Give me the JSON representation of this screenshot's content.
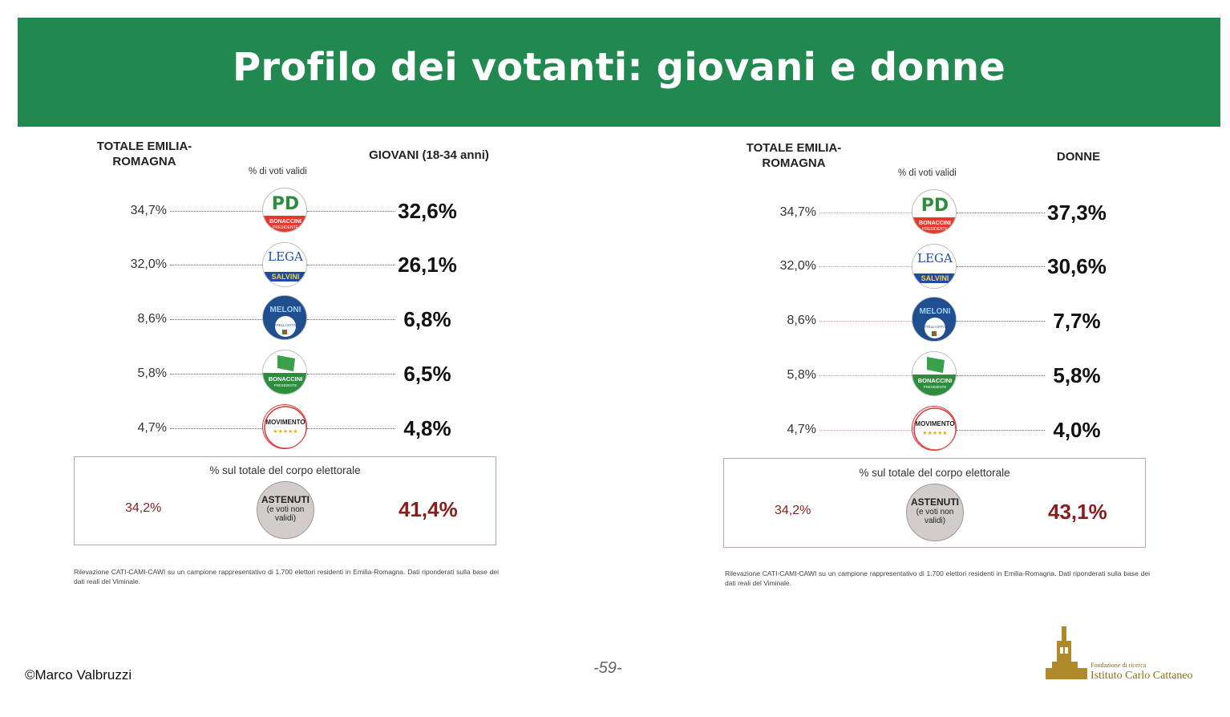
{
  "title": "Profilo dei votanti: giovani e donne",
  "panels": [
    {
      "header_total": "TOTALE EMILIA-ROMAGNA",
      "header_mid": "% di voti validi",
      "header_right": "GIOVANI (18-34 anni)",
      "rows": [
        {
          "party": "pd-bonaccini-presidente",
          "logo_text": "BONACCINI",
          "logo_sub": "PRESIDENTE",
          "total": "34,7%",
          "value": "32,6%"
        },
        {
          "party": "lega-salvini",
          "logo_text": "SALVINI",
          "logo_sub": "LEGA",
          "total": "32,0%",
          "value": "26,1%"
        },
        {
          "party": "fratelli-d-italia",
          "logo_text": "MELONI",
          "logo_sub": "FRATELLI D'ITALIA",
          "total": "8,6%",
          "value": "6,8%"
        },
        {
          "party": "lista-bonaccini",
          "logo_text": "BONACCINI",
          "logo_sub": "PRESIDENTE",
          "total": "5,8%",
          "value": "6,5%"
        },
        {
          "party": "movimento-5-stelle",
          "logo_text": "MOVIMENTO",
          "logo_sub": "",
          "total": "4,7%",
          "value": "4,8%"
        }
      ],
      "abstention": {
        "title": "% sul totale del corpo elettorale",
        "label": "ASTENUTI",
        "sub": "(e voti non validi)",
        "total": "34,2%",
        "value": "41,4%"
      },
      "note": "Rilevazione CATI-CAMI-CAWI su un campione rappresentativo di 1.700 elettori residenti in Emilia-Romagna. Dati riponderati sulla base dei dati reali del Viminale."
    },
    {
      "header_total": "TOTALE EMILIA-ROMAGNA",
      "header_mid": "% di voti validi",
      "header_right": "DONNE",
      "rows": [
        {
          "party": "pd-bonaccini-presidente",
          "logo_text": "BONACCINI",
          "logo_sub": "PRESIDENTE",
          "total": "34,7%",
          "value": "37,3%"
        },
        {
          "party": "lega-salvini",
          "logo_text": "SALVINI",
          "logo_sub": "LEGA",
          "total": "32,0%",
          "value": "30,6%"
        },
        {
          "party": "fratelli-d-italia",
          "logo_text": "MELONI",
          "logo_sub": "FRATELLI D'ITALIA",
          "total": "8,6%",
          "value": "7,7%"
        },
        {
          "party": "lista-bonaccini",
          "logo_text": "BONACCINI",
          "logo_sub": "PRESIDENTE",
          "total": "5,8%",
          "value": "5,8%"
        },
        {
          "party": "movimento-5-stelle",
          "logo_text": "MOVIMENTO",
          "logo_sub": "",
          "total": "4,7%",
          "value": "4,0%"
        }
      ],
      "abstention": {
        "title": "% sul totale del corpo elettorale",
        "label": "ASTENUTI",
        "sub": "(e voti non validi)",
        "total": "34,2%",
        "value": "43,1%"
      },
      "note": "Rilevazione CATI-CAMI-CAWI su un campione rappresentativo di 1.700 elettori residenti in Emilia-Romagna. Dati riponderati sulla base dei dati reali del Viminale."
    }
  ],
  "footer": {
    "author": "©Marco Valbruzzi",
    "page": "-59-",
    "org_small": "Fondazione di ricerca",
    "org_name": "Istituto Carlo Cattaneo"
  },
  "colors": {
    "banner": "#21894f",
    "abstention": "#8b1c1c"
  }
}
